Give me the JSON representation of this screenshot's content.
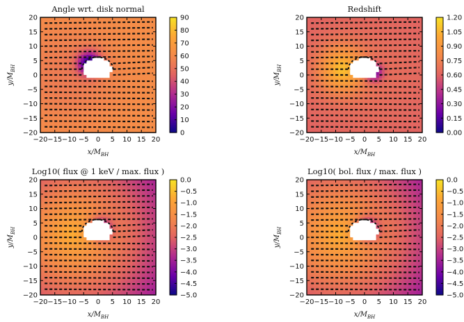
{
  "colors": {
    "colormap": [
      "#0d0887",
      "#6a00a8",
      "#b12a90",
      "#e16462",
      "#f48a4a",
      "#fca636",
      "#f7e225"
    ],
    "hole": "#ffffff",
    "dash": "#111111"
  },
  "chart_data": [
    {
      "type": "heatmap",
      "title": "Angle wrt. disk normal",
      "xlabel": "x/M_BH",
      "ylabel": "y/M_BH",
      "xlim": [
        -20,
        20
      ],
      "ylim": [
        -20,
        20
      ],
      "xticks": [
        "−20",
        "−15",
        "−10",
        "−5",
        "0",
        "5",
        "10",
        "15",
        "20"
      ],
      "yticks": [
        "20",
        "15",
        "10",
        "5",
        "0",
        "−5",
        "−10",
        "−15",
        "−20"
      ],
      "colorbar": {
        "min": 0,
        "max": 90,
        "ticks": [
          "90",
          "80",
          "70",
          "60",
          "50",
          "40",
          "30",
          "20",
          "10",
          "0"
        ]
      },
      "field": "angle"
    },
    {
      "type": "heatmap",
      "title": "Redshift",
      "xlabel": "x/M_BH",
      "ylabel": "y/M_BH",
      "xlim": [
        -20,
        20
      ],
      "ylim": [
        -20,
        20
      ],
      "xticks": [
        "−20",
        "−15",
        "−10",
        "−5",
        "0",
        "5",
        "10",
        "15",
        "20"
      ],
      "yticks": [
        "20",
        "15",
        "10",
        "5",
        "0",
        "−5",
        "−10",
        "−15",
        "−20"
      ],
      "colorbar": {
        "min": 0.0,
        "max": 1.2,
        "ticks": [
          "1.20",
          "1.05",
          "0.90",
          "0.75",
          "0.60",
          "0.45",
          "0.30",
          "0.15",
          "0.00"
        ]
      },
      "field": "redshift"
    },
    {
      "type": "heatmap",
      "title": "Log10( flux @ 1 keV / max. flux )",
      "xlabel": "x/M_BH",
      "ylabel": "y/M_BH",
      "xlim": [
        -20,
        20
      ],
      "ylim": [
        -20,
        20
      ],
      "xticks": [
        "−20",
        "−15",
        "−10",
        "−5",
        "0",
        "5",
        "10",
        "15",
        "20"
      ],
      "yticks": [
        "20",
        "15",
        "10",
        "5",
        "0",
        "−5",
        "−10",
        "−15",
        "−20"
      ],
      "colorbar": {
        "min": -5.0,
        "max": 0.0,
        "ticks": [
          "0.0",
          "−0.5",
          "−1.0",
          "−1.5",
          "−2.0",
          "−2.5",
          "−3.0",
          "−3.5",
          "−4.0",
          "−4.5",
          "−5.0"
        ]
      },
      "field": "flux"
    },
    {
      "type": "heatmap",
      "title": "Log10( bol. flux / max. flux )",
      "xlabel": "x/M_BH",
      "ylabel": "y/M_BH",
      "xlim": [
        -20,
        20
      ],
      "ylim": [
        -20,
        20
      ],
      "xticks": [
        "−20",
        "−15",
        "−10",
        "−5",
        "0",
        "5",
        "10",
        "15",
        "20"
      ],
      "yticks": [
        "20",
        "15",
        "10",
        "5",
        "0",
        "−5",
        "−10",
        "−15",
        "−20"
      ],
      "colorbar": {
        "min": -5.0,
        "max": 0.0,
        "ticks": [
          "0.0",
          "−0.5",
          "−1.0",
          "−1.5",
          "−2.0",
          "−2.5",
          "−3.0",
          "−3.5",
          "−4.0",
          "−4.5",
          "−5.0"
        ]
      },
      "field": "flux"
    }
  ]
}
